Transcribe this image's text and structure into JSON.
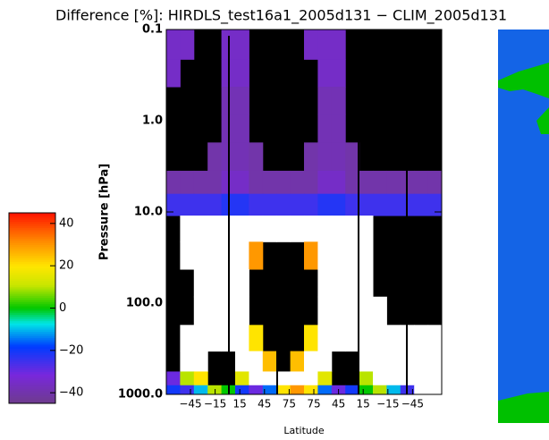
{
  "chart_data": {
    "type": "heatmap",
    "title": "Difference [%]: HIRDLS_test16a1_2005d131 − CLIM_2005d131",
    "ylabel": "Pressure [hPa]",
    "xlabel": "Latitude",
    "x_tick_labels": [
      "−45",
      "−15",
      "15",
      "45",
      "75",
      "75",
      "45",
      "15",
      "−15",
      "−45"
    ],
    "ylim": [
      0.1,
      1000
    ],
    "log_y": true,
    "y_reversed": true,
    "yticks": [
      {
        "value": 0.1,
        "label": "0.1"
      },
      {
        "value": 1,
        "label": "1.0"
      },
      {
        "value": 10,
        "label": "10.0"
      },
      {
        "value": 100,
        "label": "100.0"
      },
      {
        "value": 1000,
        "label": "1000.0"
      }
    ],
    "pressure": [
      0.15,
      0.3,
      0.6,
      1.2,
      2.5,
      5,
      8,
      15,
      30,
      60,
      120,
      250,
      450,
      700,
      900
    ],
    "z": [
      [
        -35,
        -35,
        null,
        null,
        -35,
        -35,
        null,
        null,
        null,
        null,
        -35,
        -35,
        -35,
        null,
        null,
        null,
        null,
        null,
        null,
        null
      ],
      [
        -35,
        null,
        null,
        null,
        -35,
        -35,
        null,
        null,
        null,
        null,
        null,
        -35,
        -35,
        null,
        null,
        null,
        null,
        null,
        null,
        null
      ],
      [
        null,
        null,
        null,
        null,
        -38,
        -38,
        null,
        null,
        null,
        null,
        null,
        -38,
        -38,
        null,
        null,
        null,
        null,
        null,
        null,
        null
      ],
      [
        null,
        null,
        null,
        null,
        -38,
        -38,
        null,
        null,
        null,
        null,
        null,
        -38,
        -38,
        null,
        null,
        null,
        null,
        null,
        null,
        null
      ],
      [
        null,
        null,
        null,
        -40,
        -38,
        -38,
        -40,
        null,
        null,
        null,
        -40,
        -38,
        -38,
        -40,
        null,
        null,
        null,
        null,
        null,
        null
      ],
      [
        -40,
        -40,
        -40,
        -40,
        -35,
        -35,
        -40,
        -40,
        -40,
        -40,
        -40,
        -35,
        -35,
        -40,
        -40,
        -40,
        -40,
        -40,
        -40,
        -40
      ],
      [
        -25,
        -25,
        -25,
        -25,
        -22,
        -22,
        -25,
        -25,
        -25,
        -25,
        -25,
        -22,
        -22,
        -25,
        -25,
        -25,
        -25,
        -25,
        -25,
        -25
      ],
      [
        null,
        60,
        60,
        60,
        60,
        60,
        60,
        60,
        60,
        60,
        60,
        60,
        60,
        60,
        60,
        null,
        null,
        null,
        null,
        null
      ],
      [
        null,
        60,
        60,
        60,
        60,
        60,
        30,
        null,
        null,
        null,
        30,
        60,
        60,
        60,
        60,
        null,
        null,
        null,
        null,
        null
      ],
      [
        null,
        null,
        60,
        60,
        60,
        60,
        null,
        null,
        null,
        null,
        null,
        60,
        60,
        60,
        60,
        null,
        null,
        null,
        null,
        null
      ],
      [
        null,
        null,
        60,
        60,
        60,
        60,
        null,
        null,
        null,
        null,
        null,
        60,
        60,
        60,
        60,
        60,
        null,
        null,
        null,
        null
      ],
      [
        null,
        60,
        60,
        60,
        60,
        60,
        20,
        null,
        null,
        null,
        20,
        60,
        60,
        60,
        60,
        60,
        60,
        60,
        60,
        60
      ],
      [
        null,
        60,
        60,
        null,
        null,
        60,
        60,
        25,
        null,
        25,
        60,
        60,
        null,
        null,
        60,
        60,
        60,
        60,
        60,
        60
      ],
      [
        -30,
        10,
        20,
        null,
        null,
        15,
        60,
        60,
        60,
        60,
        60,
        15,
        null,
        null,
        10,
        60,
        60,
        60,
        60,
        60
      ],
      [
        -20,
        -25,
        -10,
        10,
        0,
        -20,
        -30,
        -15,
        20,
        30,
        20,
        -15,
        -30,
        -20,
        0,
        10,
        -10,
        -25,
        60,
        60
      ]
    ],
    "zlim": [
      -45,
      45
    ],
    "colorbar_ticks": [
      {
        "value": 40,
        "label": "40"
      },
      {
        "value": 20,
        "label": "20"
      },
      {
        "value": 0,
        "label": "0"
      },
      {
        "value": -20,
        "label": "−20"
      },
      {
        "value": -40,
        "label": "−40"
      }
    ]
  }
}
